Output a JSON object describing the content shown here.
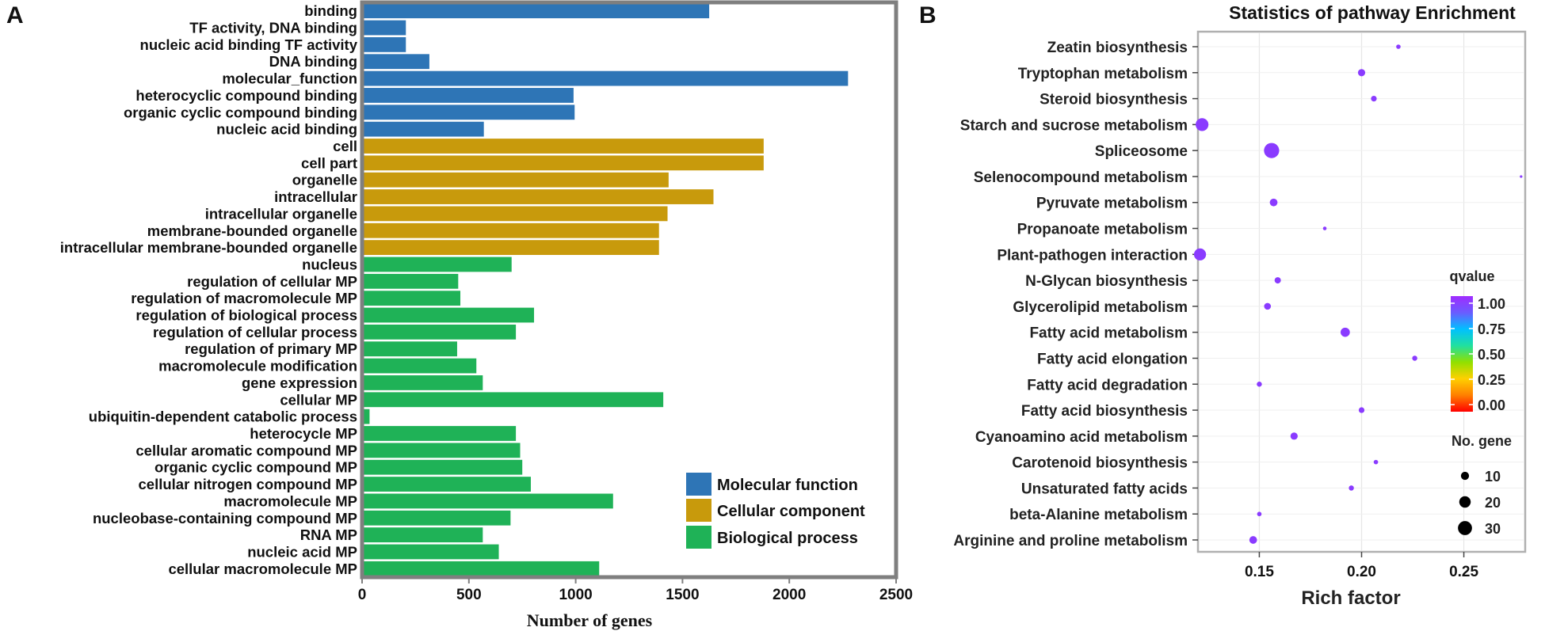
{
  "chart_data": [
    {
      "type": "bar",
      "panel": "A",
      "orientation": "horizontal",
      "xlabel": "Number of genes",
      "ylabel": "",
      "xlim": [
        0,
        2500
      ],
      "xticks": [
        0,
        500,
        1000,
        1500,
        2000,
        2500
      ],
      "colors": {
        "Molecular function": "#2e75b6",
        "Cellular component": "#c89a0c",
        "Biological process": "#1fb257"
      },
      "legend": [
        "Molecular function",
        "Cellular component",
        "Biological process"
      ],
      "legend_position": "bottom-right",
      "categories": [
        "binding",
        "TF activity, DNA binding",
        "nucleic acid binding TF activity",
        "DNA binding",
        "molecular_function",
        "heterocyclic compound binding",
        "organic cyclic compound binding",
        "nucleic acid binding",
        "cell",
        "cell part",
        "organelle",
        "intracellular",
        "intracellular organelle",
        "membrane-bounded organelle",
        "intracellular membrane-bounded organelle",
        "nucleus",
        "regulation of cellular MP",
        "regulation of macromolecule MP",
        "regulation of biological process",
        "regulation of cellular process",
        "regulation of primary MP",
        "macromolecule modification",
        "gene expression",
        "cellular MP",
        "ubiquitin-dependent catabolic process",
        "heterocycle MP",
        "cellular aromatic compound MP",
        "organic cyclic compound MP",
        "cellular nitrogen compound MP",
        "macromolecule MP",
        "nucleobase-containing compound MP",
        "RNA MP",
        "nucleic acid MP",
        "cellular macromolecule MP"
      ],
      "groups": [
        "Molecular function",
        "Molecular function",
        "Molecular function",
        "Molecular function",
        "Molecular function",
        "Molecular function",
        "Molecular function",
        "Molecular function",
        "Cellular component",
        "Cellular component",
        "Cellular component",
        "Cellular component",
        "Cellular component",
        "Cellular component",
        "Cellular component",
        "Biological process",
        "Biological process",
        "Biological process",
        "Biological process",
        "Biological process",
        "Biological process",
        "Biological process",
        "Biological process",
        "Biological process",
        "Biological process",
        "Biological process",
        "Biological process",
        "Biological process",
        "Biological process",
        "Biological process",
        "Biological process",
        "Biological process",
        "Biological process",
        "Biological process"
      ],
      "values": [
        1625,
        205,
        205,
        315,
        2275,
        990,
        995,
        570,
        1880,
        1880,
        1435,
        1645,
        1430,
        1390,
        1390,
        700,
        450,
        460,
        805,
        720,
        445,
        535,
        565,
        1410,
        35,
        720,
        740,
        750,
        790,
        1175,
        695,
        565,
        640,
        1110
      ]
    },
    {
      "type": "scatter",
      "panel": "B",
      "title": "Statistics of pathway Enrichment",
      "xlabel": "Rich factor",
      "xlim": [
        0.12,
        0.28
      ],
      "xticks": [
        0.15,
        0.2,
        0.25
      ],
      "xtick_labels": [
        "0.15",
        "0.20",
        "0.25"
      ],
      "grid": true,
      "pathways": [
        "Zeatin biosynthesis",
        "Tryptophan metabolism",
        "Steroid biosynthesis",
        "Starch and sucrose metabolism",
        "Spliceosome",
        "Selenocompound metabolism",
        "Pyruvate metabolism",
        "Propanoate metabolism",
        "Plant-pathogen interaction",
        "N-Glycan biosynthesis",
        "Glycerolipid metabolism",
        "Fatty acid metabolism",
        "Fatty acid elongation",
        "Fatty acid degradation",
        "Fatty acid biosynthesis",
        "Cyanoamino acid metabolism",
        "Carotenoid biosynthesis",
        "Unsaturated fatty acids",
        "beta-Alanine metabolism",
        "Arginine and proline metabolism"
      ],
      "rich_factor": [
        0.218,
        0.2,
        0.206,
        0.122,
        0.156,
        0.278,
        0.157,
        0.182,
        0.121,
        0.159,
        0.154,
        0.192,
        0.226,
        0.15,
        0.2,
        0.167,
        0.207,
        0.195,
        0.15,
        0.147
      ],
      "gene_count": [
        3,
        8,
        5,
        25,
        35,
        1,
        9,
        2,
        22,
        6,
        7,
        13,
        4,
        4,
        5,
        8,
        3,
        4,
        3,
        9
      ],
      "qvalue": [
        1.0,
        1.0,
        1.0,
        1.0,
        1.0,
        1.0,
        1.0,
        1.0,
        1.0,
        1.0,
        1.0,
        1.0,
        1.0,
        1.0,
        1.0,
        1.0,
        1.0,
        1.0,
        1.0,
        1.0
      ],
      "color_legend": {
        "title": "qvalue",
        "labels": [
          "1.00",
          "0.75",
          "0.50",
          "0.25",
          "0.00"
        ],
        "colors": [
          "#a02cff",
          "#6a5cff",
          "#00c0ff",
          "#20e0a0",
          "#90e000",
          "#ffd000",
          "#ff8000",
          "#ff0000"
        ]
      },
      "size_legend": {
        "title": "No. gene",
        "labels": [
          "10",
          "20",
          "30"
        ],
        "values": [
          10,
          20,
          30
        ]
      },
      "point_color": "#8a3bff"
    }
  ]
}
